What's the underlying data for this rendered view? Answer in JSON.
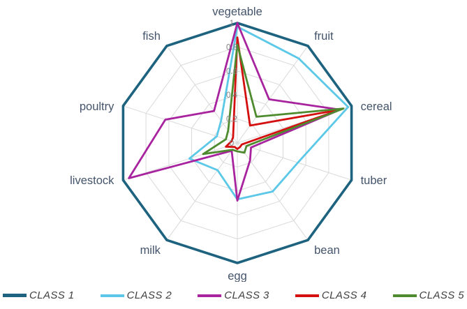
{
  "chart_data": {
    "type": "radar",
    "categories": [
      "vegetable",
      "fruit",
      "cereal",
      "tuber",
      "bean",
      "egg",
      "milk",
      "livestock",
      "poultry",
      "fish"
    ],
    "tick_labels": [
      "0",
      "0.2",
      "0.4",
      "0.6",
      "0.8",
      "1"
    ],
    "rlim": [
      0,
      1
    ],
    "grid": true,
    "grid_color": "#d9d9d9",
    "label_color": "#44546a",
    "tick_color": "#808080",
    "legend_position": "bottom",
    "series": [
      {
        "name": "CLASS 1",
        "color": "#1d627e",
        "values": [
          1,
          1,
          1,
          1,
          1,
          1,
          1,
          1,
          1,
          1
        ]
      },
      {
        "name": "CLASS 2",
        "color": "#5bc8e8",
        "values": [
          0.97,
          0.87,
          0.97,
          0.53,
          0.5,
          0.47,
          0.28,
          0.42,
          0.18,
          0.23
        ]
      },
      {
        "name": "CLASS 3",
        "color": "#a8239e",
        "values": [
          1,
          0.45,
          0.9,
          0.12,
          0.18,
          0.48,
          0.08,
          0.95,
          0.63,
          0.33
        ]
      },
      {
        "name": "CLASS 4",
        "color": "#d40f0f",
        "values": [
          0.88,
          0.18,
          0.9,
          0.04,
          0.04,
          0.05,
          0.04,
          0.1,
          0.05,
          0.06
        ]
      },
      {
        "name": "CLASS 5",
        "color": "#4e8b2f",
        "values": [
          0.82,
          0.27,
          0.93,
          0.08,
          0.1,
          0.07,
          0.07,
          0.3,
          0.1,
          0.13
        ]
      }
    ]
  }
}
